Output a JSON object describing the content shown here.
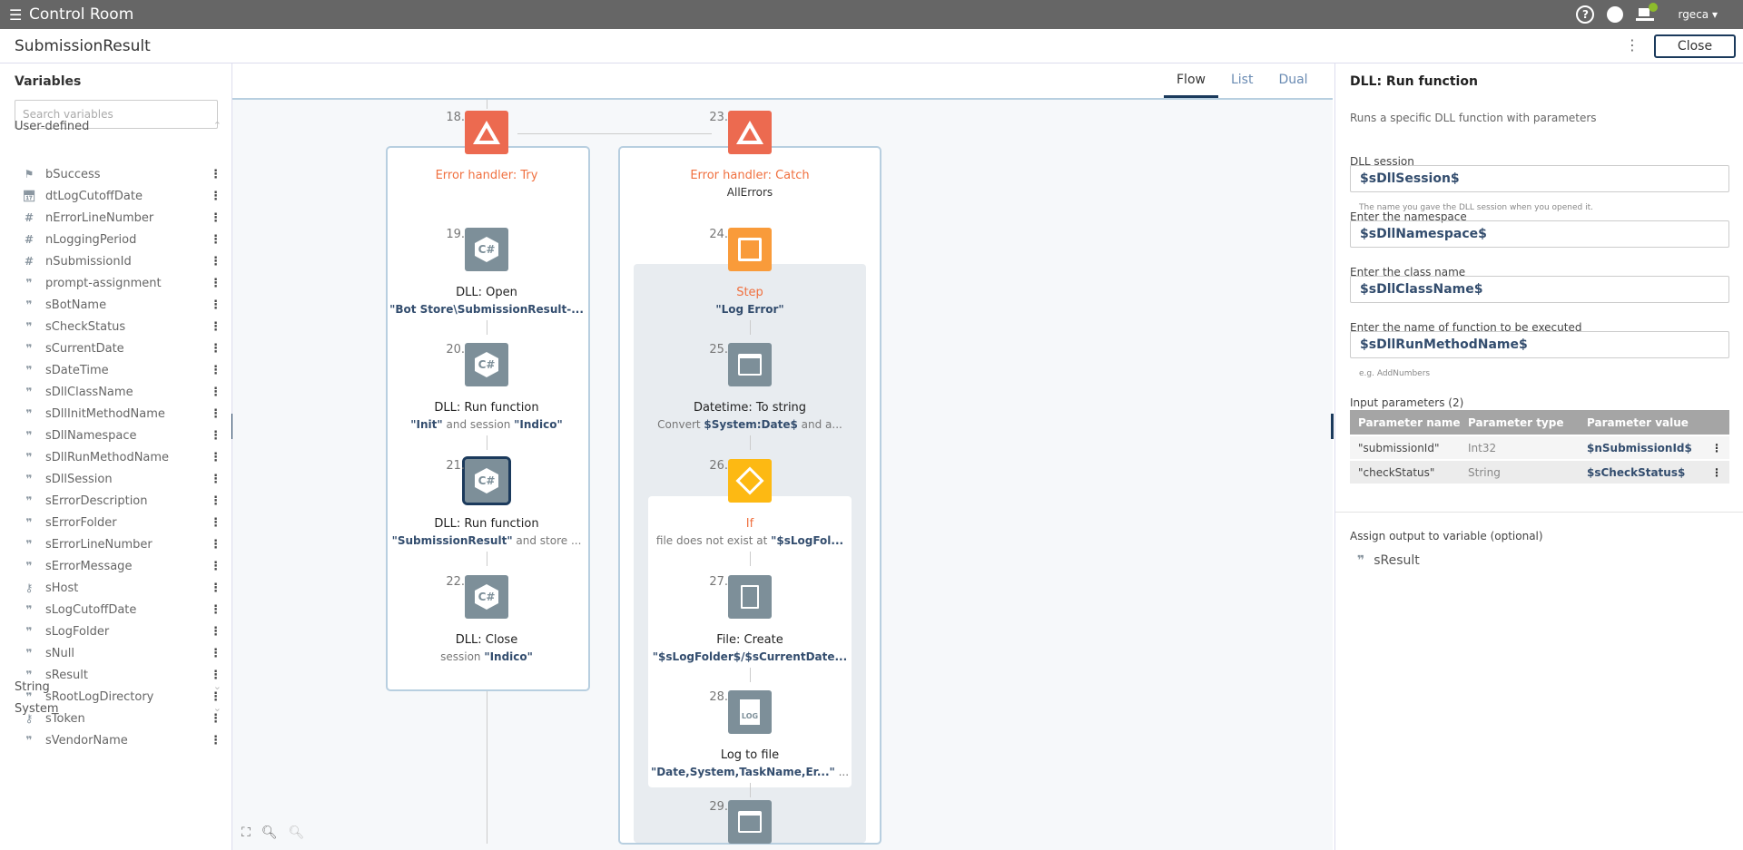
{
  "topbar": {
    "app_title": "Control Room",
    "user": "rgeca",
    "help_icon": "help-icon",
    "globe_icon": "globe-icon",
    "device_icon": "device-status-icon"
  },
  "header": {
    "title": "SubmissionResult",
    "close_label": "Close"
  },
  "sidebar": {
    "title": "Variables",
    "search_placeholder": "Search variables",
    "groups": {
      "user_defined": "User-defined",
      "string": "String",
      "system": "System"
    },
    "variables": [
      {
        "name": "bSuccess",
        "type": "boolean",
        "icon": "flag-icon"
      },
      {
        "name": "dtLogCutoffDate",
        "type": "datetime",
        "icon": "calendar-clock-icon"
      },
      {
        "name": "nErrorLineNumber",
        "type": "number",
        "icon": "hash-icon"
      },
      {
        "name": "nLoggingPeriod",
        "type": "number",
        "icon": "hash-icon"
      },
      {
        "name": "nSubmissionId",
        "type": "number",
        "icon": "hash-icon"
      },
      {
        "name": "prompt-assignment",
        "type": "string",
        "icon": "quote-icon"
      },
      {
        "name": "sBotName",
        "type": "string",
        "icon": "quote-icon"
      },
      {
        "name": "sCheckStatus",
        "type": "string",
        "icon": "quote-icon"
      },
      {
        "name": "sCurrentDate",
        "type": "string",
        "icon": "quote-icon"
      },
      {
        "name": "sDateTime",
        "type": "string",
        "icon": "quote-icon"
      },
      {
        "name": "sDllClassName",
        "type": "string",
        "icon": "quote-icon"
      },
      {
        "name": "sDllInitMethodName",
        "type": "string",
        "icon": "quote-icon"
      },
      {
        "name": "sDllNamespace",
        "type": "string",
        "icon": "quote-icon"
      },
      {
        "name": "sDllRunMethodName",
        "type": "string",
        "icon": "quote-icon"
      },
      {
        "name": "sDllSession",
        "type": "string",
        "icon": "quote-icon"
      },
      {
        "name": "sErrorDescription",
        "type": "string",
        "icon": "quote-icon"
      },
      {
        "name": "sErrorFolder",
        "type": "string",
        "icon": "quote-icon"
      },
      {
        "name": "sErrorLineNumber",
        "type": "string",
        "icon": "quote-icon"
      },
      {
        "name": "sErrorMessage",
        "type": "string",
        "icon": "quote-icon"
      },
      {
        "name": "sHost",
        "type": "credential",
        "icon": "key-icon"
      },
      {
        "name": "sLogCutoffDate",
        "type": "string",
        "icon": "quote-icon"
      },
      {
        "name": "sLogFolder",
        "type": "string",
        "icon": "quote-icon"
      },
      {
        "name": "sNull",
        "type": "string",
        "icon": "quote-icon"
      },
      {
        "name": "sResult",
        "type": "string",
        "icon": "quote-icon"
      },
      {
        "name": "sRootLogDirectory",
        "type": "string",
        "icon": "quote-icon"
      },
      {
        "name": "sToken",
        "type": "credential",
        "icon": "key-icon"
      },
      {
        "name": "sVendorName",
        "type": "string",
        "icon": "quote-icon"
      }
    ]
  },
  "view_tabs": [
    {
      "label": "Flow",
      "active": true
    },
    {
      "label": "List",
      "active": false
    },
    {
      "label": "Dual",
      "active": false
    }
  ],
  "flow": {
    "nodes": [
      {
        "num": "18.",
        "title": "Error handler: Try",
        "subtitle": [],
        "icon": "error-handler-icon",
        "color": "#ec6a50",
        "title_style": "orange",
        "col": "left",
        "row": 0
      },
      {
        "num": "19.",
        "title": "DLL: Open",
        "subtitle": [
          {
            "t": "\"Bot Store\\SubmissionResult-...",
            "b": true
          }
        ],
        "icon": "csharp-icon",
        "color": "#7d8f99",
        "col": "left",
        "row": 1
      },
      {
        "num": "20.",
        "title": "DLL: Run function",
        "subtitle": [
          {
            "t": "\"Init\"",
            "b": true
          },
          {
            "t": " and session ",
            "b": false
          },
          {
            "t": "\"Indico\"",
            "b": true
          }
        ],
        "icon": "csharp-icon",
        "color": "#7d8f99",
        "col": "left",
        "row": 2
      },
      {
        "num": "21.",
        "title": "DLL: Run function",
        "subtitle": [
          {
            "t": "\"SubmissionResult\"",
            "b": true
          },
          {
            "t": " and store ...",
            "b": false
          }
        ],
        "icon": "csharp-icon",
        "color": "#7d8f99",
        "col": "left",
        "row": 3,
        "selected": true
      },
      {
        "num": "22.",
        "title": "DLL: Close",
        "subtitle": [
          {
            "t": "session ",
            "b": false
          },
          {
            "t": "\"Indico\"",
            "b": true
          }
        ],
        "icon": "csharp-icon",
        "color": "#7d8f99",
        "col": "left",
        "row": 4
      },
      {
        "num": "23.",
        "title": "Error handler: Catch",
        "subtitle": [
          {
            "t": "AllErrors",
            "b": false,
            "dark": true
          }
        ],
        "icon": "error-handler-icon",
        "color": "#ec6a50",
        "title_style": "orange",
        "col": "right",
        "row": 0
      },
      {
        "num": "24.",
        "title": "Step",
        "subtitle": [
          {
            "t": "\"Log Error\"",
            "b": true
          }
        ],
        "icon": "step-icon",
        "color": "#f99b3a",
        "title_style": "orange",
        "col": "right",
        "row": 1
      },
      {
        "num": "25.",
        "title": "Datetime: To string",
        "subtitle": [
          {
            "t": "Convert ",
            "b": false
          },
          {
            "t": "$System:Date$",
            "b": true
          },
          {
            "t": " and a...",
            "b": false
          }
        ],
        "icon": "calendar-icon",
        "color": "#7d8f99",
        "col": "right",
        "row": 2
      },
      {
        "num": "26.",
        "title": "If",
        "subtitle": [
          {
            "t": "file does not exist at ",
            "b": false
          },
          {
            "t": "\"$sLogFol...",
            "b": true
          }
        ],
        "icon": "if-icon",
        "color": "#fdb913",
        "title_style": "orange",
        "col": "right",
        "row": 3
      },
      {
        "num": "27.",
        "title": "File: Create",
        "subtitle": [
          {
            "t": "\"$sLogFolder$/$sCurrentDate...",
            "b": true
          }
        ],
        "icon": "file-icon",
        "color": "#7d8f99",
        "col": "right",
        "row": 4
      },
      {
        "num": "28.",
        "title": "Log to file",
        "subtitle": [
          {
            "t": "\"Date,System,TaskName,Er...\"",
            "b": true
          },
          {
            "t": " ...",
            "b": false
          }
        ],
        "icon": "log-file-icon",
        "color": "#7d8f99",
        "col": "right",
        "row": 5
      },
      {
        "num": "29.",
        "title": "",
        "subtitle": [],
        "icon": "calendar-icon",
        "color": "#7d8f99",
        "col": "right",
        "row": 6
      }
    ]
  },
  "panel": {
    "title": "DLL: Run function",
    "description": "Runs a specific DLL function with parameters",
    "fields": [
      {
        "label": "DLL session",
        "value": "$sDllSession$",
        "hint": "The name you gave the DLL session when you opened it."
      },
      {
        "label": "Enter the namespace",
        "value": "$sDllNamespace$",
        "hint": ""
      },
      {
        "label": "Enter the class name",
        "value": "$sDllClassName$",
        "hint": ""
      },
      {
        "label": "Enter the name of function to be executed",
        "value": "$sDllRunMethodName$",
        "hint": "e.g. AddNumbers"
      }
    ],
    "params_label": "Input parameters (2)",
    "params_headers": [
      "Parameter name",
      "Parameter type",
      "Parameter value"
    ],
    "params": [
      {
        "name": "\"submissionId\"",
        "type": "Int32",
        "value": "$nSubmissionId$"
      },
      {
        "name": "\"checkStatus\"",
        "type": "String",
        "value": "$sCheckStatus$"
      }
    ],
    "output_label": "Assign output to variable (optional)",
    "output_var": "sResult"
  },
  "colors": {
    "topbar": "#666666",
    "accent": "#1b3a5c",
    "error_handler": "#ec6a50",
    "step": "#f99b3a",
    "if": "#fdb913",
    "action": "#7d8f99"
  }
}
